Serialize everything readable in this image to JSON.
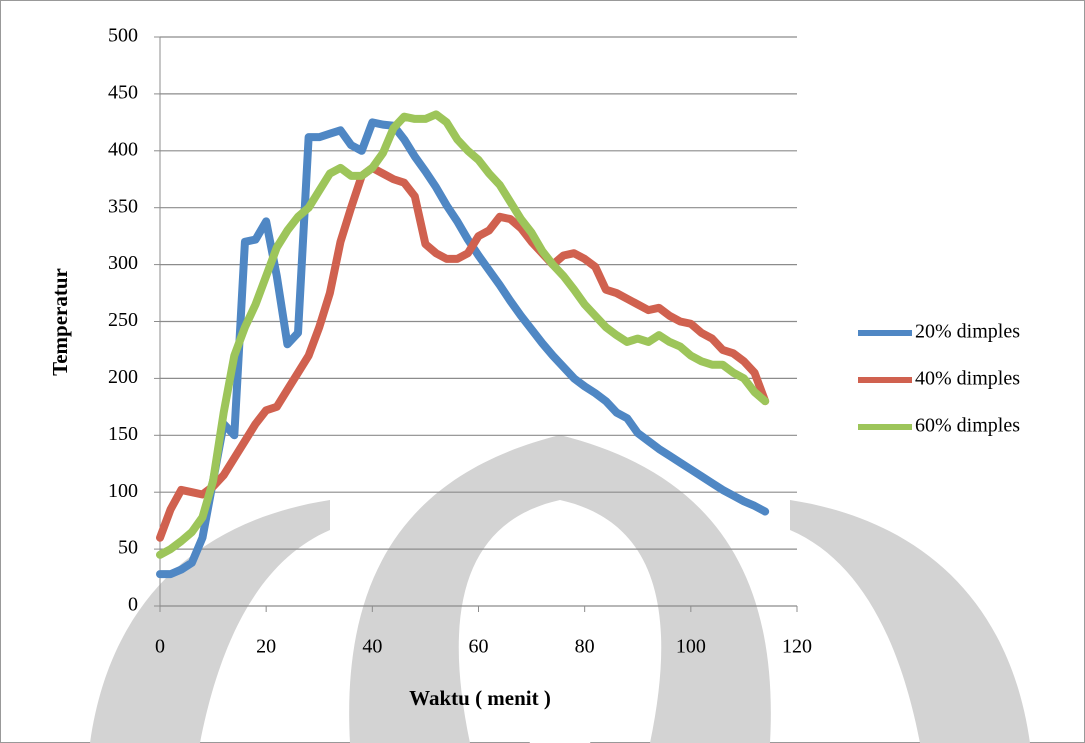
{
  "chart_data": {
    "type": "line",
    "xlabel": "Waktu ( menit )",
    "ylabel": "Temperatur",
    "x": [
      0,
      2,
      4,
      6,
      8,
      10,
      12,
      14,
      16,
      18,
      20,
      22,
      24,
      26,
      28,
      30,
      32,
      34,
      36,
      38,
      40,
      42,
      44,
      46,
      48,
      50,
      52,
      54,
      56,
      58,
      60,
      62,
      64,
      66,
      68,
      70,
      72,
      74,
      76,
      78,
      80,
      82,
      84,
      86,
      88,
      90,
      92,
      94,
      96,
      98,
      100,
      102,
      104,
      106,
      108,
      110,
      112,
      114
    ],
    "series": [
      {
        "name": "20% dimples",
        "color": "#4f87c4",
        "values": [
          28,
          28,
          32,
          38,
          60,
          110,
          160,
          150,
          320,
          322,
          338,
          290,
          230,
          240,
          412,
          412,
          415,
          418,
          405,
          400,
          425,
          423,
          422,
          410,
          395,
          382,
          368,
          352,
          338,
          322,
          308,
          295,
          282,
          268,
          255,
          243,
          231,
          220,
          210,
          200,
          193,
          187,
          180,
          170,
          165,
          152,
          145,
          138,
          132,
          126,
          120,
          114,
          108,
          102,
          97,
          92,
          88,
          83
        ]
      },
      {
        "name": "40% dimples",
        "color": "#d0614f",
        "values": [
          60,
          85,
          102,
          100,
          98,
          105,
          115,
          130,
          145,
          160,
          172,
          175,
          190,
          205,
          220,
          245,
          275,
          320,
          350,
          378,
          385,
          380,
          375,
          372,
          360,
          318,
          310,
          305,
          305,
          310,
          325,
          330,
          342,
          340,
          332,
          320,
          310,
          300,
          308,
          310,
          305,
          298,
          278,
          275,
          270,
          265,
          260,
          262,
          255,
          250,
          248,
          240,
          235,
          225,
          222,
          215,
          205,
          180
        ]
      },
      {
        "name": "60% dimples",
        "color": "#9dc55a",
        "values": [
          45,
          50,
          57,
          65,
          78,
          110,
          170,
          220,
          245,
          265,
          290,
          315,
          330,
          342,
          350,
          365,
          380,
          385,
          378,
          378,
          385,
          398,
          420,
          430,
          428,
          428,
          432,
          425,
          410,
          400,
          392,
          380,
          370,
          355,
          340,
          328,
          312,
          300,
          290,
          278,
          265,
          255,
          245,
          238,
          232,
          235,
          232,
          238,
          232,
          228,
          220,
          215,
          212,
          212,
          205,
          200,
          188,
          180
        ]
      }
    ],
    "xlim": [
      0,
      120
    ],
    "xticks": [
      0,
      20,
      40,
      60,
      80,
      100,
      120
    ],
    "ylim": [
      0,
      500
    ],
    "yticks": [
      0,
      50,
      100,
      150,
      200,
      250,
      300,
      350,
      400,
      450,
      500
    ],
    "grid": true,
    "legend": "right"
  }
}
